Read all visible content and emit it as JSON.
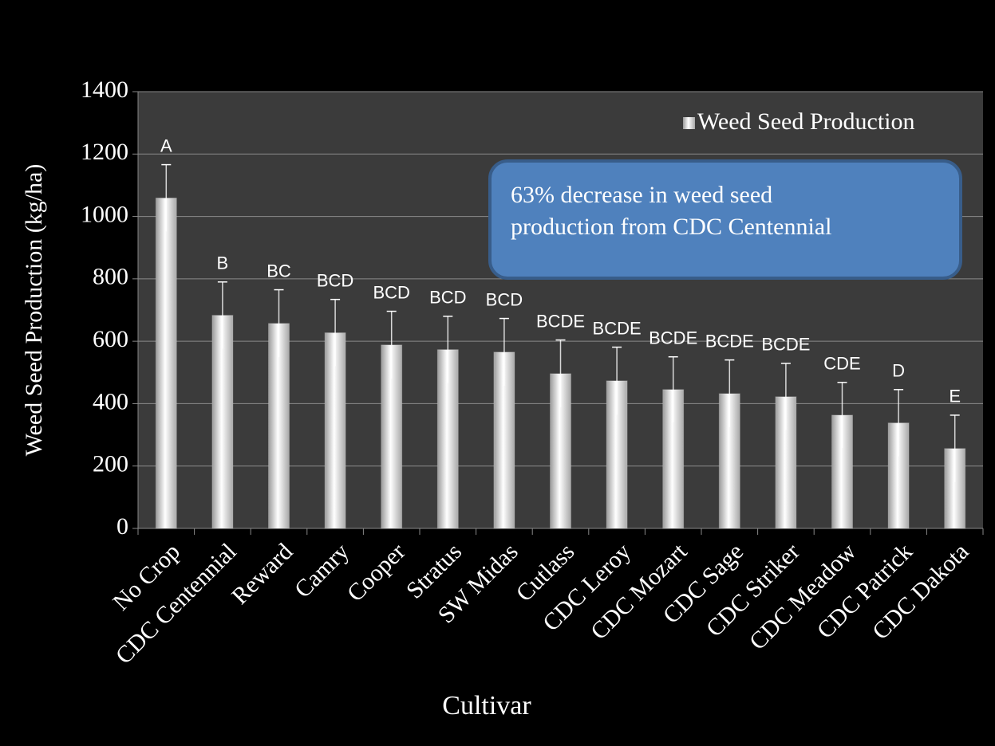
{
  "chart_data": {
    "type": "bar",
    "x_label": "Cultivar",
    "y_label": "Weed Seed Production (kg/ha)",
    "categories": [
      "No Crop",
      "CDC Centennial",
      "Reward",
      "Camry",
      "Cooper",
      "Stratus",
      "SW Midas",
      "Cutlass",
      "CDC Leroy",
      "CDC Mozart",
      "CDC Sage",
      "CDC Striker",
      "CDC Meadow",
      "CDC Patrick",
      "CDC Dakota"
    ],
    "series": [
      {
        "name": "Weed Seed Production",
        "color": "#ffffff",
        "values": [
          1059,
          683,
          657,
          627,
          588,
          573,
          565,
          496,
          473,
          445,
          432,
          422,
          363,
          338,
          256
        ],
        "errors": [
          107,
          107,
          108,
          107,
          108,
          107,
          108,
          108,
          108,
          105,
          108,
          107,
          105,
          107,
          107
        ]
      }
    ],
    "letters": [
      "A",
      "B",
      "BC",
      "BCD",
      "BCD",
      "BCD",
      "BCD",
      "BCDE",
      "BCDE",
      "BCDE",
      "BCDE",
      "BCDE",
      "CDE",
      "D",
      "E"
    ],
    "annotation": [
      "63% decrease in weed seed",
      "production from CDC Centennial"
    ],
    "ylim": [
      0,
      1400
    ],
    "yticks": [
      0,
      200,
      400,
      600,
      800,
      1000,
      1200,
      1400
    ],
    "grid": true,
    "legend": "upper right"
  }
}
